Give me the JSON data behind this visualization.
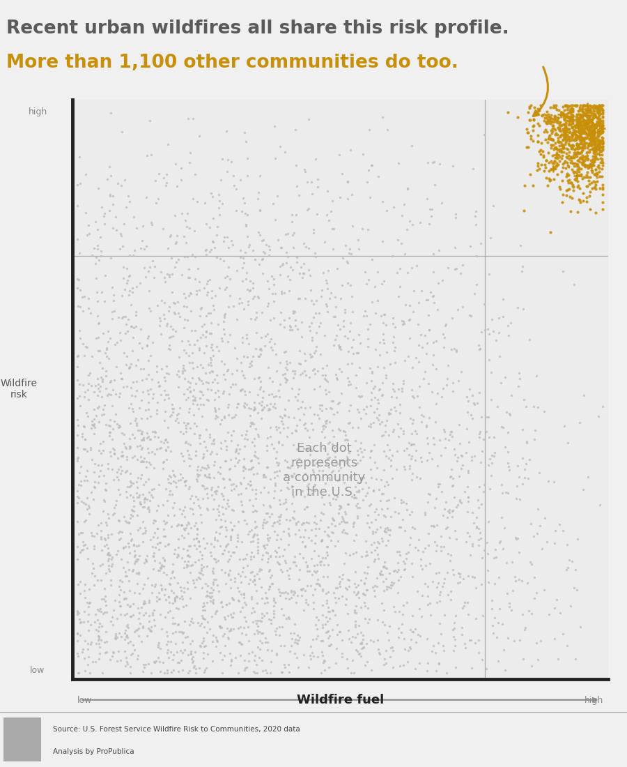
{
  "title_line1": "Recent urban wildfires all share this risk profile.",
  "title_line2": "More than 1,100 other communities do too.",
  "title_color1": "#5a5a5a",
  "title_color2": "#c8900a",
  "xlabel_low": "low",
  "xlabel_label": "Wildfire fuel",
  "xlabel_high": "high",
  "ylabel_top": "high",
  "ylabel_label": "Wildfire\nrisk",
  "ylabel_bottom": "low",
  "annotation_text": "Each dot\nrepresents\na community\nin the U.S.",
  "annotation_color": "#999999",
  "bg_color": "#f0f0f0",
  "plot_bg_color": "#ececec",
  "highlight_bg": "#e8e8e8",
  "dot_color_gray": "#bbbbbb",
  "dot_color_orange": "#c8900a",
  "source_bg": "#d5d5d5",
  "n_gray": 4000,
  "n_orange": 1100,
  "vline_x": 0.77,
  "hline_y": 0.73,
  "arrow_color": "#c8900a",
  "spine_color": "#222222",
  "refline_color": "#aaaaaa"
}
